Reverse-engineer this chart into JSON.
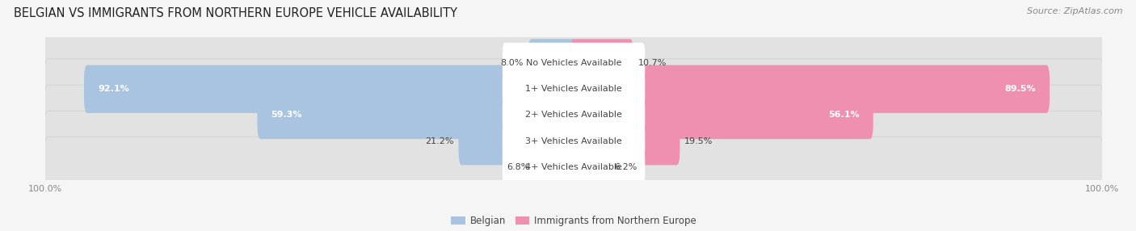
{
  "title": "BELGIAN VS IMMIGRANTS FROM NORTHERN EUROPE VEHICLE AVAILABILITY",
  "source": "Source: ZipAtlas.com",
  "categories": [
    "No Vehicles Available",
    "1+ Vehicles Available",
    "2+ Vehicles Available",
    "3+ Vehicles Available",
    "4+ Vehicles Available"
  ],
  "belgian_values": [
    8.0,
    92.1,
    59.3,
    21.2,
    6.8
  ],
  "immigrant_values": [
    10.7,
    89.5,
    56.1,
    19.5,
    6.2
  ],
  "belgian_color": "#a8c4e0",
  "immigrant_color": "#f090b0",
  "row_bg_color": "#e2e2e2",
  "fig_bg_color": "#f5f5f5",
  "max_value": 100.0,
  "title_fontsize": 10.5,
  "label_fontsize": 8.0,
  "value_fontsize": 8.0,
  "legend_fontsize": 8.5,
  "source_fontsize": 8.0,
  "tick_fontsize": 8.0
}
